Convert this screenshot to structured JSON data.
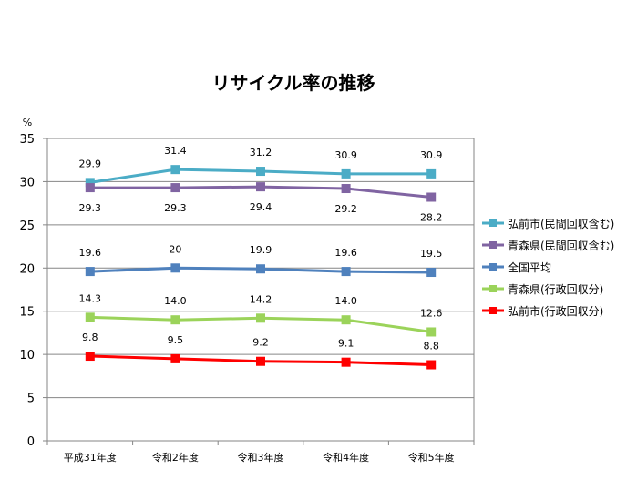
{
  "chart_data": {
    "type": "line",
    "title": "リサイクル率の推移",
    "ylabel": "%",
    "xlabel": "",
    "categories": [
      "平成31年度",
      "令和2年度",
      "令和3年度",
      "令和4年度",
      "令和5年度"
    ],
    "ylim": [
      0,
      35
    ],
    "yticks": [
      0,
      5,
      10,
      15,
      20,
      25,
      30,
      35
    ],
    "grid": true,
    "legend_position": "right",
    "series": [
      {
        "name": "弘前市(民間回収含む)",
        "color": "#4bacc6",
        "values": [
          29.9,
          31.4,
          31.2,
          30.9,
          30.9
        ],
        "labels": [
          "29.9",
          "31.4",
          "31.2",
          "30.9",
          "30.9"
        ],
        "label_pos": "above"
      },
      {
        "name": "青森県(民間回収含む)",
        "color": "#8064a2",
        "values": [
          29.3,
          29.3,
          29.4,
          29.2,
          28.2
        ],
        "labels": [
          "29.3",
          "29.3",
          "29.4",
          "29.2",
          "28.2"
        ],
        "label_pos": "below"
      },
      {
        "name": "全国平均",
        "color": "#4f81bd",
        "values": [
          19.6,
          20,
          19.9,
          19.6,
          19.5
        ],
        "labels": [
          "19.6",
          "20",
          "19.9",
          "19.6",
          "19.5"
        ],
        "label_pos": "above"
      },
      {
        "name": "青森県(行政回収分)",
        "color": "#9bd35a",
        "values": [
          14.3,
          14.0,
          14.2,
          14.0,
          12.6
        ],
        "labels": [
          "14.3",
          "14.0",
          "14.2",
          "14.0",
          "12.6"
        ],
        "label_pos": "above"
      },
      {
        "name": "弘前市(行政回収分)",
        "color": "#ff0000",
        "values": [
          9.8,
          9.5,
          9.2,
          9.1,
          8.8
        ],
        "labels": [
          "9.8",
          "9.5",
          "9.2",
          "9.1",
          "8.8"
        ],
        "label_pos": "above"
      }
    ]
  }
}
